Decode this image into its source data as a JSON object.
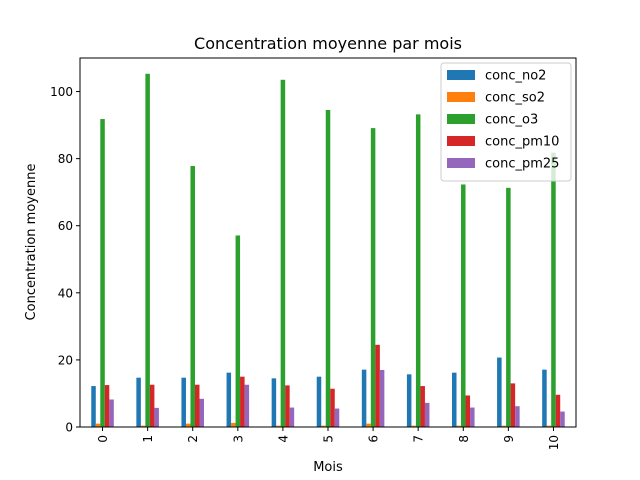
{
  "chart_data": {
    "type": "bar",
    "title": "Concentration moyenne par mois",
    "xlabel": "Mois",
    "ylabel": "Concentration moyenne",
    "categories": [
      "0",
      "1",
      "2",
      "3",
      "4",
      "5",
      "6",
      "7",
      "8",
      "9",
      "10"
    ],
    "ylim": [
      0,
      110
    ],
    "yticks": [
      0,
      20,
      40,
      60,
      80,
      100
    ],
    "grid": false,
    "legend_position": "top-right",
    "series": [
      {
        "name": "conc_no2",
        "color": "#1f77b4",
        "values": [
          12.2,
          14.7,
          14.7,
          16.2,
          14.5,
          15.0,
          17.1,
          15.7,
          16.2,
          20.7,
          17.1
        ]
      },
      {
        "name": "conc_so2",
        "color": "#ff7f0e",
        "values": [
          1.0,
          0.4,
          1.0,
          1.2,
          0.4,
          0.4,
          1.0,
          0.4,
          0.4,
          0.4,
          0.4
        ]
      },
      {
        "name": "conc_o3",
        "color": "#2ca02c",
        "values": [
          91.8,
          105.3,
          77.8,
          57.1,
          103.5,
          94.5,
          89.1,
          93.2,
          72.3,
          71.3,
          81.8
        ]
      },
      {
        "name": "conc_pm10",
        "color": "#d62728",
        "values": [
          12.5,
          12.6,
          12.6,
          15.0,
          12.4,
          11.4,
          24.5,
          12.2,
          9.4,
          13.0,
          9.6
        ]
      },
      {
        "name": "conc_pm25",
        "color": "#9467bd",
        "values": [
          8.2,
          5.7,
          8.4,
          12.6,
          5.8,
          5.5,
          17.0,
          7.2,
          5.8,
          6.2,
          4.6
        ]
      }
    ]
  }
}
